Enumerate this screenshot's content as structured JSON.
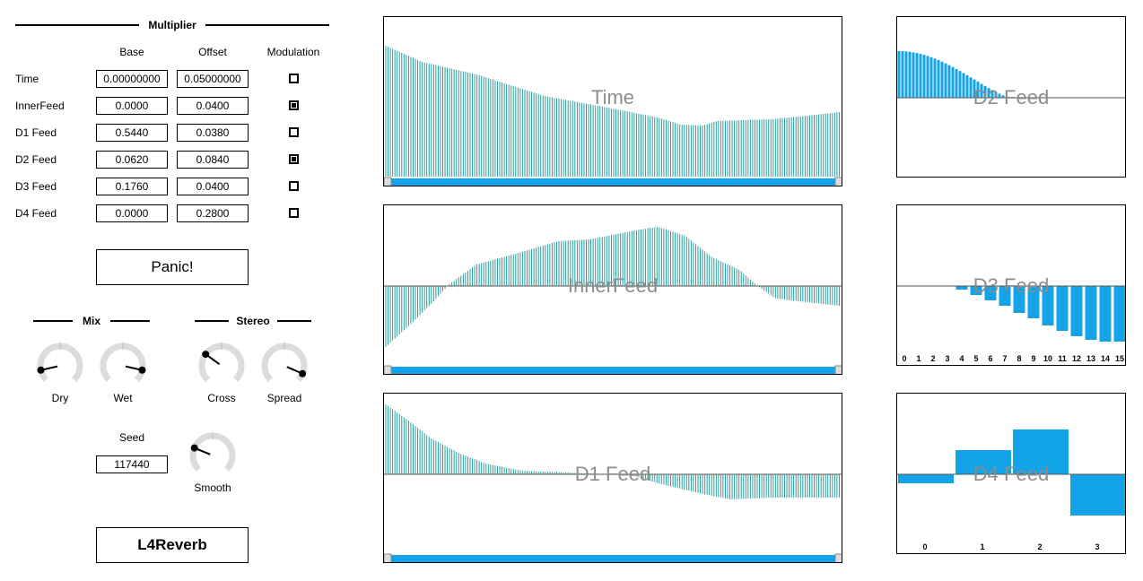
{
  "multiplier": {
    "title": "Multiplier",
    "columns": {
      "base": "Base",
      "offset": "Offset",
      "modulation": "Modulation"
    },
    "rows": [
      {
        "label": "Time",
        "base": "0.00000000",
        "offset": "0.05000000",
        "modulation": false
      },
      {
        "label": "InnerFeed",
        "base": "0.0000",
        "offset": "0.0400",
        "modulation": true
      },
      {
        "label": "D1 Feed",
        "base": "0.5440",
        "offset": "0.0380",
        "modulation": false
      },
      {
        "label": "D2 Feed",
        "base": "0.0620",
        "offset": "0.0840",
        "modulation": true
      },
      {
        "label": "D3 Feed",
        "base": "0.1760",
        "offset": "0.0400",
        "modulation": false
      },
      {
        "label": "D4 Feed",
        "base": "0.0000",
        "offset": "0.2800",
        "modulation": false
      }
    ]
  },
  "panic_label": "Panic!",
  "mix": {
    "title": "Mix",
    "dry_label": "Dry",
    "wet_label": "Wet",
    "dry": 0.12,
    "wet": 0.88
  },
  "stereo": {
    "title": "Stereo",
    "cross_label": "Cross",
    "spread_label": "Spread",
    "cross": 0.3,
    "spread": 0.92
  },
  "seed": {
    "label": "Seed",
    "value": "117440"
  },
  "smooth": {
    "label": "Smooth",
    "value": 0.25
  },
  "plugin_name": "L4Reverb",
  "accent_color": "#12a3e8",
  "wave_color": "#2a9d9d",
  "panels": {
    "time": "Time",
    "innerfeed": "InnerFeed",
    "d1feed": "D1 Feed",
    "d2feed": "D2 Feed",
    "d3feed": "D3 Feed",
    "d4feed": "D4 Feed"
  },
  "d3_ticks": [
    "0",
    "1",
    "2",
    "3",
    "4",
    "5",
    "6",
    "7",
    "8",
    "9",
    "10",
    "11",
    "12",
    "13",
    "14",
    "15"
  ],
  "d4_ticks": [
    "0",
    "1",
    "2",
    "3"
  ],
  "d4_values": [
    -0.1,
    0.27,
    0.5,
    -0.46
  ]
}
